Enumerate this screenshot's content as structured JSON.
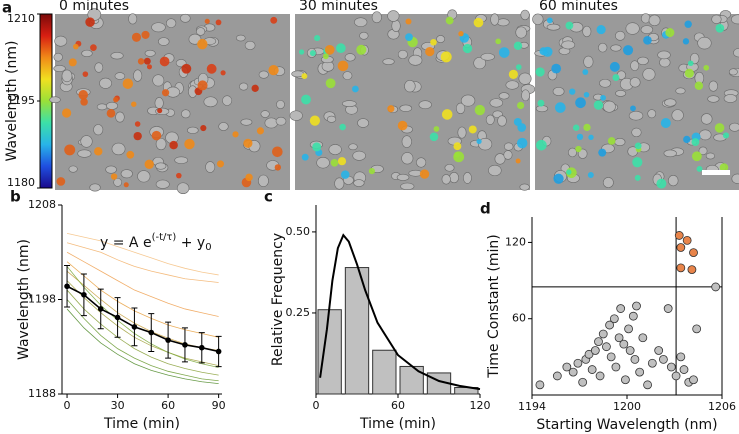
{
  "chart_data": [
    {
      "type": "colorbar",
      "panel": "a",
      "ylabel": "Wavelength (nm)",
      "ylim": [
        1180,
        1210
      ],
      "yticks": [
        1180,
        1195,
        1210
      ],
      "colormap": [
        "#1a0a8c",
        "#1f4fe0",
        "#28b4e8",
        "#3ce0a8",
        "#9ae038",
        "#f0e020",
        "#f08a18",
        "#d81e12",
        "#7a0a0a"
      ],
      "images": [
        "0 minutes",
        "30 minutes",
        "60 minutes"
      ]
    },
    {
      "type": "line",
      "panel": "b",
      "xlabel": "Time (min)",
      "ylabel": "Wavelength (nm)",
      "equation": [
        "y = A e",
        "(-t/τ)",
        " + y",
        "0"
      ],
      "x": [
        0,
        10,
        20,
        30,
        40,
        50,
        60,
        70,
        80,
        90
      ],
      "xlim": [
        -3,
        92
      ],
      "xticks": [
        0,
        30,
        60,
        90
      ],
      "ylim": [
        1188,
        1208
      ],
      "yticks": [
        1188,
        1198,
        1208
      ],
      "traces": [
        {
          "color": "#f2b068",
          "values": [
            1204,
            1203.5,
            1203,
            1202.2,
            1201.5,
            1201,
            1200.6,
            1200.2,
            1200,
            1199.8
          ]
        },
        {
          "color": "#eea050",
          "values": [
            1203,
            1202,
            1201,
            1200,
            1199,
            1198.3,
            1197.6,
            1197,
            1196.6,
            1196.2
          ]
        },
        {
          "color": "#e8a040",
          "values": [
            1202,
            1200.5,
            1199,
            1197.8,
            1196.8,
            1196,
            1195.3,
            1194.8,
            1194.4,
            1194
          ]
        },
        {
          "color": "#c8a040",
          "values": [
            1201,
            1199.5,
            1198,
            1196.6,
            1195.5,
            1194.6,
            1193.9,
            1193.3,
            1192.9,
            1192.6
          ]
        },
        {
          "color": "#a0a038",
          "values": [
            1200,
            1198.2,
            1196.6,
            1195.2,
            1194,
            1193.1,
            1192.4,
            1191.8,
            1191.4,
            1191
          ]
        },
        {
          "color": "#88a038",
          "values": [
            1199,
            1197,
            1195.4,
            1194,
            1192.8,
            1191.9,
            1191.2,
            1190.7,
            1190.3,
            1190
          ]
        },
        {
          "color": "#6a9a30",
          "values": [
            1198,
            1196,
            1194.2,
            1192.8,
            1191.8,
            1191,
            1190.4,
            1190,
            1189.6,
            1189.4
          ]
        },
        {
          "color": "#4e8a28",
          "values": [
            1197,
            1195,
            1193.4,
            1192.2,
            1191.2,
            1190.5,
            1190,
            1189.6,
            1189.3,
            1189.1
          ]
        },
        {
          "color": "#f5c080",
          "values": [
            1205,
            1204.6,
            1204.2,
            1203.6,
            1203,
            1202.4,
            1201.8,
            1201.3,
            1200.9,
            1200.6
          ]
        },
        {
          "color": "#7aa838",
          "values": [
            1201.5,
            1199.3,
            1197.4,
            1195.8,
            1194.4,
            1193.3,
            1192.4,
            1191.7,
            1191.2,
            1190.8
          ]
        }
      ],
      "series": [
        {
          "color": "#000000",
          "values": [
            1199.4,
            1198.5,
            1197,
            1196.1,
            1195.1,
            1194.5,
            1193.7,
            1193.2,
            1192.9,
            1192.5
          ],
          "error": [
            2.2,
            2.2,
            2.1,
            2.1,
            2,
            2,
            1.9,
            1.8,
            1.6,
            1.6
          ]
        }
      ]
    },
    {
      "type": "histogram",
      "panel": "c",
      "xlabel": "Time (min)",
      "ylabel": "Relative Frequency",
      "bins": [
        0,
        20,
        40,
        60,
        80,
        100,
        120
      ],
      "values": [
        0.26,
        0.39,
        0.135,
        0.085,
        0.065,
        0.02
      ],
      "color": "#c0c0c0",
      "xlim": [
        0,
        120
      ],
      "xticks": [
        0,
        60,
        120
      ],
      "ylim": [
        0,
        0.583
      ],
      "yticks": [
        0.25,
        {
          "value": 0.5,
          "label": "0.50"
        }
      ],
      "fit": {
        "color": "#000000",
        "x": [
          3,
          8,
          12,
          16,
          20,
          24,
          30,
          36,
          45,
          60,
          75,
          90,
          105,
          120
        ],
        "y": [
          0.05,
          0.2,
          0.35,
          0.45,
          0.49,
          0.47,
          0.4,
          0.32,
          0.22,
          0.12,
          0.07,
          0.04,
          0.025,
          0.015
        ]
      }
    },
    {
      "type": "scatter",
      "panel": "d",
      "xlabel": "Starting Wavelength (nm)",
      "ylabel": "Time Constant (min)",
      "xlim": [
        1194,
        1206
      ],
      "xticks": [
        1194,
        1200,
        1206
      ],
      "ylim": [
        0,
        140
      ],
      "yticks": [
        60,
        120
      ],
      "hline": 85,
      "vline": 1203.1,
      "series": [
        {
          "color": "#c0c0c0",
          "x": [
            1194.5,
            1195.6,
            1196.2,
            1196.6,
            1196.9,
            1197.2,
            1197.4,
            1197.6,
            1197.8,
            1198,
            1198.2,
            1198.3,
            1198.5,
            1198.7,
            1198.9,
            1199,
            1199.2,
            1199.3,
            1199.5,
            1199.6,
            1199.8,
            1199.9,
            1200.1,
            1200.2,
            1200.4,
            1200.5,
            1200.8,
            1201,
            1201.3,
            1201.6,
            1202,
            1202.3,
            1202.6,
            1202.8,
            1203.1,
            1203.4,
            1203.6,
            1203.9,
            1204.2,
            1204.4,
            1205.6,
            1200.6
          ],
          "y": [
            8,
            15,
            22,
            18,
            25,
            10,
            28,
            32,
            20,
            35,
            42,
            15,
            48,
            38,
            55,
            30,
            60,
            22,
            45,
            68,
            40,
            12,
            52,
            35,
            62,
            28,
            18,
            45,
            8,
            25,
            35,
            28,
            68,
            22,
            15,
            30,
            20,
            10,
            12,
            52,
            85,
            70
          ]
        },
        {
          "color": "#e8844a",
          "x": [
            1203.3,
            1203.8,
            1203.4,
            1204.2,
            1203.4,
            1204.1
          ],
          "y": [
            125.5,
            121.6,
            116,
            112,
            100,
            98.6
          ]
        }
      ]
    }
  ]
}
